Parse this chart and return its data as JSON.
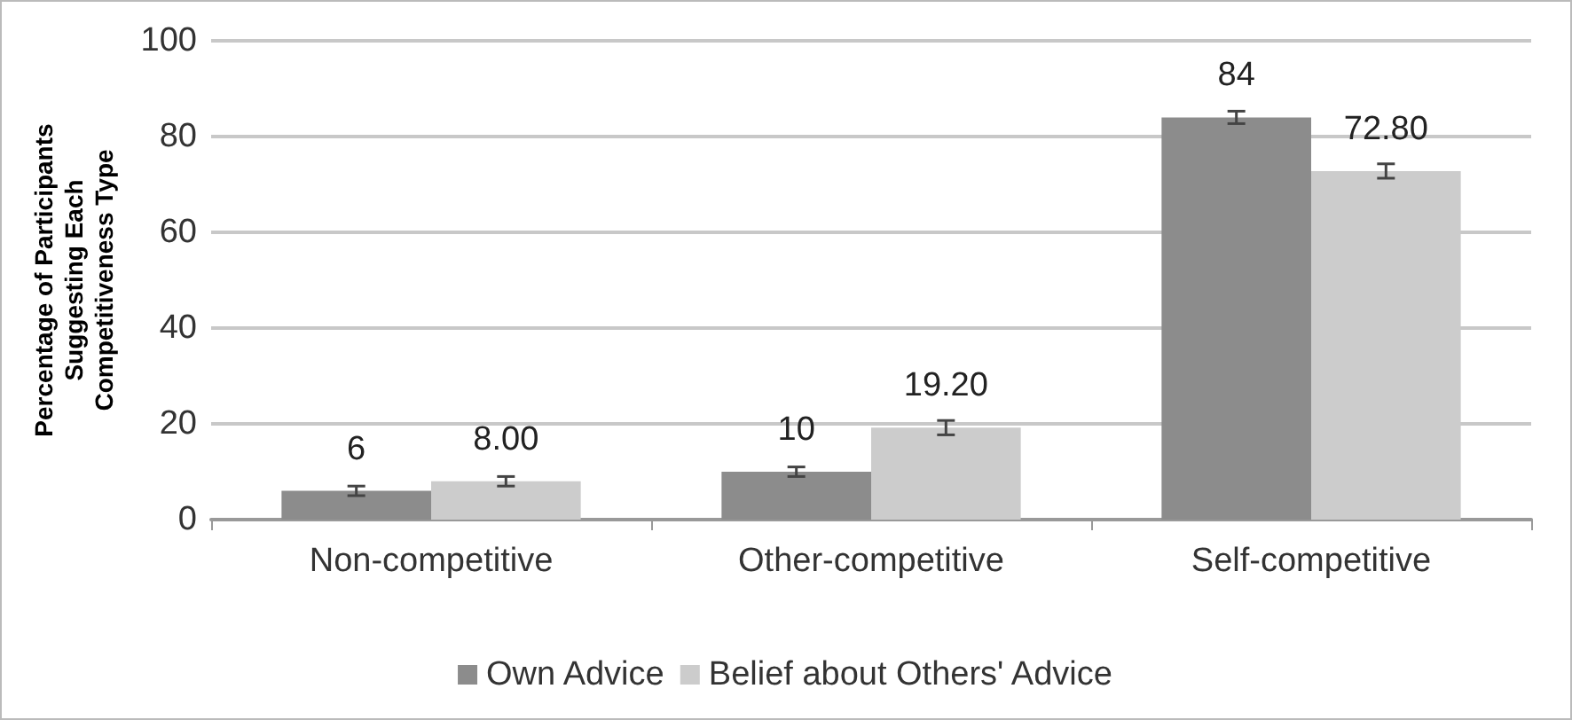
{
  "chart_data": {
    "type": "bar",
    "ylabel": "Percentage of Participants Suggesting Each Competitiveness Type",
    "categories": [
      "Non-competitive",
      "Other-competitive",
      "Self-competitive"
    ],
    "series": [
      {
        "name": "Own Advice",
        "color": "#8c8c8c",
        "values": [
          6,
          10,
          84
        ],
        "errors": [
          1,
          1,
          1.3
        ],
        "value_labels": [
          "6",
          "10",
          "84"
        ]
      },
      {
        "name": "Belief about Others' Advice",
        "color": "#cccccc",
        "values": [
          8,
          19.2,
          72.8
        ],
        "errors": [
          1,
          1.5,
          1.5
        ],
        "value_labels": [
          "8.00",
          "19.20",
          "72.80"
        ]
      }
    ],
    "ylim": [
      0,
      100
    ],
    "yticks": [
      0,
      20,
      40,
      60,
      80,
      100
    ],
    "grid": "y",
    "legend": "bottom"
  }
}
